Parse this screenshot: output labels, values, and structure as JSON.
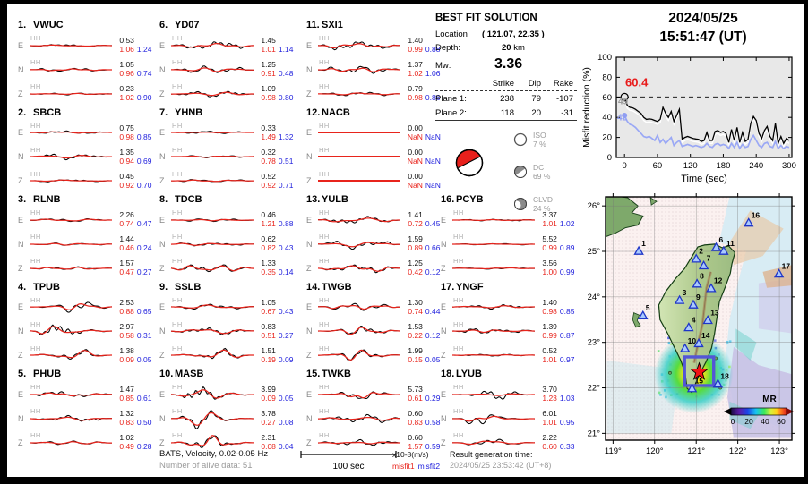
{
  "header": {
    "date": "2024/05/25",
    "time": "15:51:47  (UT)"
  },
  "best_fit": {
    "title": "BEST FIT SOLUTION",
    "location_label": "Location",
    "location_value": "( 121.07,  22.35 )",
    "depth_label": "Depth:",
    "depth_value": "20",
    "depth_unit": "km",
    "mw_label": "Mw:",
    "mw_value": "3.36",
    "table": {
      "headers": [
        "Strike",
        "Dip",
        "Rake"
      ],
      "rows": [
        {
          "label": "Plane 1:",
          "strike": "238",
          "dip": "79",
          "rake": "-107"
        },
        {
          "label": "Plane 2:",
          "strike": "118",
          "dip": "20",
          "rake": "-31"
        }
      ]
    },
    "components": [
      {
        "name": "ISO",
        "pct": "7 %"
      },
      {
        "name": "DC",
        "pct": "69 %"
      },
      {
        "name": "CLVD",
        "pct": "24 %"
      }
    ]
  },
  "stations": [
    {
      "num": "1.",
      "name": "VWUC",
      "traces": [
        {
          "comp": "E",
          "chan": "HH",
          "val": "0.53",
          "m1": "1.06",
          "m2": "1.24",
          "amp": 0.14
        },
        {
          "comp": "N",
          "chan": "HH",
          "val": "1.05",
          "m1": "0.96",
          "m2": "0.74",
          "amp": 0.18
        },
        {
          "comp": "Z",
          "chan": "HH",
          "val": "0.23",
          "m1": "1.02",
          "m2": "0.90",
          "amp": 0.1
        }
      ]
    },
    {
      "num": "2.",
      "name": "SBCB",
      "traces": [
        {
          "comp": "E",
          "chan": "HH",
          "val": "0.75",
          "m1": "0.98",
          "m2": "0.85",
          "amp": 0.14
        },
        {
          "comp": "N",
          "chan": "HH",
          "val": "1.35",
          "m1": "0.94",
          "m2": "0.69",
          "amp": 0.28
        },
        {
          "comp": "Z",
          "chan": "HH",
          "val": "0.45",
          "m1": "0.92",
          "m2": "0.70",
          "amp": 0.12
        }
      ]
    },
    {
      "num": "3.",
      "name": "RLNB",
      "traces": [
        {
          "comp": "E",
          "chan": "HH",
          "val": "2.26",
          "m1": "0.74",
          "m2": "0.47",
          "amp": 0.18
        },
        {
          "comp": "N",
          "chan": "HH",
          "val": "1.44",
          "m1": "0.46",
          "m2": "0.24",
          "amp": 0.12
        },
        {
          "comp": "Z",
          "chan": "HH",
          "val": "1.57",
          "m1": "0.47",
          "m2": "0.27",
          "amp": 0.16
        }
      ]
    },
    {
      "num": "4.",
      "name": "TPUB",
      "traces": [
        {
          "comp": "E",
          "chan": "HH",
          "val": "2.53",
          "m1": "0.88",
          "m2": "0.65",
          "amp": 0.8
        },
        {
          "comp": "N",
          "chan": "HH",
          "val": "2.97",
          "m1": "0.58",
          "m2": "0.31",
          "amp": 0.9
        },
        {
          "comp": "Z",
          "chan": "HH",
          "val": "1.38",
          "m1": "0.09",
          "m2": "0.05",
          "amp": 0.6
        }
      ]
    },
    {
      "num": "5.",
      "name": "PHUB",
      "traces": [
        {
          "comp": "E",
          "chan": "HH",
          "val": "1.47",
          "m1": "0.85",
          "m2": "0.61",
          "amp": 0.3
        },
        {
          "comp": "N",
          "chan": "HH",
          "val": "1.32",
          "m1": "0.83",
          "m2": "0.50",
          "amp": 0.3
        },
        {
          "comp": "Z",
          "chan": "HH",
          "val": "1.02",
          "m1": "0.49",
          "m2": "0.28",
          "amp": 0.18
        }
      ]
    },
    {
      "num": "6.",
      "name": "YD07",
      "traces": [
        {
          "comp": "E",
          "chan": "HH",
          "val": "1.45",
          "m1": "1.01",
          "m2": "1.14",
          "amp": 0.4
        },
        {
          "comp": "N",
          "chan": "HH",
          "val": "1.25",
          "m1": "0.91",
          "m2": "0.48",
          "amp": 0.35
        },
        {
          "comp": "Z",
          "chan": "HH",
          "val": "1.09",
          "m1": "0.98",
          "m2": "0.80",
          "amp": 0.3
        }
      ]
    },
    {
      "num": "7.",
      "name": "YHNB",
      "traces": [
        {
          "comp": "E",
          "chan": "HH",
          "val": "0.33",
          "m1": "1.49",
          "m2": "1.32",
          "amp": 0.12
        },
        {
          "comp": "N",
          "chan": "HH",
          "val": "0.32",
          "m1": "0.78",
          "m2": "0.51",
          "amp": 0.12
        },
        {
          "comp": "Z",
          "chan": "HH",
          "val": "0.52",
          "m1": "0.92",
          "m2": "0.71",
          "amp": 0.14
        }
      ]
    },
    {
      "num": "8.",
      "name": "TDCB",
      "traces": [
        {
          "comp": "E",
          "chan": "HH",
          "val": "0.46",
          "m1": "1.21",
          "m2": "0.88",
          "amp": 0.16
        },
        {
          "comp": "N",
          "chan": "HH",
          "val": "0.62",
          "m1": "0.82",
          "m2": "0.43",
          "amp": 0.2
        },
        {
          "comp": "Z",
          "chan": "HH",
          "val": "1.33",
          "m1": "0.35",
          "m2": "0.14",
          "amp": 0.45
        }
      ]
    },
    {
      "num": "9.",
      "name": "SSLB",
      "traces": [
        {
          "comp": "E",
          "chan": "HH",
          "val": "1.05",
          "m1": "0.67",
          "m2": "0.43",
          "amp": 0.28
        },
        {
          "comp": "N",
          "chan": "HH",
          "val": "0.83",
          "m1": "0.51",
          "m2": "0.27",
          "amp": 0.35
        },
        {
          "comp": "Z",
          "chan": "HH",
          "val": "1.51",
          "m1": "0.19",
          "m2": "0.09",
          "amp": 0.6
        }
      ]
    },
    {
      "num": "10.",
      "name": "MASB",
      "traces": [
        {
          "comp": "E",
          "chan": "HH",
          "val": "3.99",
          "m1": "0.09",
          "m2": "0.05",
          "amp": 1.0
        },
        {
          "comp": "N",
          "chan": "HH",
          "val": "3.78",
          "m1": "0.27",
          "m2": "0.08",
          "amp": 0.95
        },
        {
          "comp": "Z",
          "chan": "HH",
          "val": "2.31",
          "m1": "0.08",
          "m2": "0.04",
          "amp": 0.8
        }
      ]
    },
    {
      "num": "11.",
      "name": "SXI1",
      "traces": [
        {
          "comp": "E",
          "chan": "HH",
          "val": "1.40",
          "m1": "0.99",
          "m2": "0.88",
          "amp": 0.45
        },
        {
          "comp": "N",
          "chan": "HH",
          "val": "1.37",
          "m1": "1.02",
          "m2": "1.06",
          "amp": 0.4
        },
        {
          "comp": "Z",
          "chan": "HH",
          "val": "0.79",
          "m1": "0.98",
          "m2": "0.86",
          "amp": 0.2
        }
      ]
    },
    {
      "num": "12.",
      "name": "NACB",
      "traces": [
        {
          "comp": "E",
          "chan": "HH",
          "val": "0.00",
          "m1": "NaN",
          "m2": "NaN",
          "amp": 0
        },
        {
          "comp": "N",
          "chan": "HH",
          "val": "0.00",
          "m1": "NaN",
          "m2": "NaN",
          "amp": 0
        },
        {
          "comp": "Z",
          "chan": "HH",
          "val": "0.00",
          "m1": "NaN",
          "m2": "NaN",
          "amp": 0
        }
      ]
    },
    {
      "num": "13.",
      "name": "YULB",
      "traces": [
        {
          "comp": "E",
          "chan": "HH",
          "val": "1.41",
          "m1": "0.72",
          "m2": "0.45",
          "amp": 0.4
        },
        {
          "comp": "N",
          "chan": "HH",
          "val": "1.59",
          "m1": "0.89",
          "m2": "0.66",
          "amp": 0.45
        },
        {
          "comp": "Z",
          "chan": "HH",
          "val": "1.25",
          "m1": "0.42",
          "m2": "0.12",
          "amp": 0.4
        }
      ]
    },
    {
      "num": "14.",
      "name": "TWGB",
      "traces": [
        {
          "comp": "E",
          "chan": "HH",
          "val": "1.30",
          "m1": "0.74",
          "m2": "0.44",
          "amp": 0.35
        },
        {
          "comp": "N",
          "chan": "HH",
          "val": "1.53",
          "m1": "0.22",
          "m2": "0.12",
          "amp": 0.6
        },
        {
          "comp": "Z",
          "chan": "HH",
          "val": "1.99",
          "m1": "0.15",
          "m2": "0.05",
          "amp": 0.65
        }
      ]
    },
    {
      "num": "15.",
      "name": "TWKB",
      "traces": [
        {
          "comp": "E",
          "chan": "HH",
          "val": "5.73",
          "m1": "0.61",
          "m2": "0.29",
          "amp": 0.6
        },
        {
          "comp": "N",
          "chan": "HH",
          "val": "0.60",
          "m1": "0.83",
          "m2": "0.58",
          "amp": 0.45
        },
        {
          "comp": "Z",
          "chan": "HH",
          "val": "0.60",
          "m1": "1.57",
          "m2": "0.59",
          "amp": 0.3
        }
      ]
    },
    {
      "num": "16.",
      "name": "PCYB",
      "traces": [
        {
          "comp": "E",
          "chan": "HH",
          "val": "3.37",
          "m1": "1.01",
          "m2": "1.02",
          "amp": 0.1
        },
        {
          "comp": "N",
          "chan": "HH",
          "val": "5.52",
          "m1": "0.99",
          "m2": "0.89",
          "amp": 0.08
        },
        {
          "comp": "Z",
          "chan": "HH",
          "val": "3.56",
          "m1": "1.00",
          "m2": "0.99",
          "amp": 0.1
        }
      ]
    },
    {
      "num": "17.",
      "name": "YNGF",
      "traces": [
        {
          "comp": "E",
          "chan": "HH",
          "val": "1.40",
          "m1": "0.98",
          "m2": "0.85",
          "amp": 0.22
        },
        {
          "comp": "N",
          "chan": "HH",
          "val": "1.39",
          "m1": "0.99",
          "m2": "0.87",
          "amp": 0.25
        },
        {
          "comp": "Z",
          "chan": "HH",
          "val": "0.52",
          "m1": "1.01",
          "m2": "0.97",
          "amp": 0.1
        }
      ]
    },
    {
      "num": "18.",
      "name": "LYUB",
      "traces": [
        {
          "comp": "E",
          "chan": "HH",
          "val": "3.70",
          "m1": "1.23",
          "m2": "1.03",
          "amp": 0.55
        },
        {
          "comp": "N",
          "chan": "HH",
          "val": "6.01",
          "m1": "1.01",
          "m2": "0.95",
          "amp": 0.7
        },
        {
          "comp": "Z",
          "chan": "HH",
          "val": "2.22",
          "m1": "0.60",
          "m2": "0.33",
          "amp": 0.55
        }
      ]
    }
  ],
  "footer": {
    "bats": "BATS, Velocity, 0.02-0.05 Hz",
    "alive": "Number of alive data: 51",
    "scale_label": "100 sec",
    "units_amp": "x10-8(m/s)",
    "units_m1": "misfit1",
    "units_m2": "misfit2",
    "result_label": "Result generation time:",
    "result_time": "2024/05/25 23:53:42 (UT+8)"
  },
  "colors": {
    "misfit1": "#e8241c",
    "misfit2": "#2222dd",
    "best_label": "#e81c1c",
    "blue_line": "#9aa8f5",
    "gray_label": "#9a9a9a",
    "map_triangle": "#1f36c8",
    "box": "#5356d6",
    "star": "#f01414"
  },
  "chart_data": [
    {
      "type": "line",
      "title": "Misfit reduction vs time",
      "xlabel": "Time (sec)",
      "ylabel": "Misfit reduction (%)",
      "xlim": [
        -15,
        305
      ],
      "ylim": [
        0,
        100
      ],
      "xticks": [
        0,
        60,
        120,
        180,
        240,
        300
      ],
      "yticks": [
        0,
        20,
        40,
        60,
        80,
        100
      ],
      "grid": false,
      "legend_position": "none",
      "plot_bg": "#e8e8e8",
      "dashed_hline": 60.4,
      "x_step_sec": 5,
      "annotations": [
        {
          "text": "60.4",
          "color": "#e81c1c",
          "bold": true
        },
        {
          "text": "49",
          "color": "#9a9a9a",
          "bold": true
        },
        {
          "text": "42",
          "color": "#8f9df2",
          "bold": true
        }
      ],
      "markers": [
        {
          "x": 0,
          "y": 60.4,
          "style": "open-circle",
          "color": "#000000"
        },
        {
          "x": 0,
          "y": 42,
          "style": "filled-circle",
          "color": "#8f9df2"
        }
      ],
      "series": [
        {
          "name": "misfit1 (black)",
          "color": "#000000",
          "values": [
            60.4,
            52,
            50,
            49.5,
            48,
            46,
            44,
            40,
            38,
            38.5,
            38,
            37,
            36,
            38,
            50,
            44,
            40,
            46,
            36,
            42,
            48,
            18,
            20,
            21,
            20,
            19,
            18.5,
            18,
            16,
            17,
            25,
            17,
            17,
            26,
            27,
            25,
            26,
            24,
            15,
            28,
            17,
            30,
            15,
            25,
            16,
            18,
            34,
            41,
            37,
            24,
            19,
            27,
            31,
            21,
            17,
            34,
            14,
            21,
            14,
            19,
            17
          ]
        },
        {
          "name": "misfit2 (blue)",
          "color": "#9aa8f5",
          "values": [
            42,
            36,
            33,
            32,
            30,
            27,
            24,
            21,
            20,
            21,
            19,
            17,
            22,
            15,
            18,
            14,
            17,
            20,
            12,
            15,
            17,
            11,
            12,
            13,
            12,
            11,
            12,
            11,
            10,
            11,
            14,
            11,
            10,
            13,
            14,
            12,
            13,
            12,
            9,
            14,
            10,
            15,
            9,
            13,
            10,
            11,
            18,
            22,
            17,
            12,
            10,
            14,
            15,
            11,
            10,
            16,
            9,
            12,
            9,
            11,
            10
          ]
        },
        {
          "name": "overlay (white)",
          "color": "#ffffff",
          "derived_from": "misfit1 (black)",
          "offset": -3,
          "start_value": 49
        }
      ]
    },
    {
      "type": "map",
      "lon_range": [
        118.82,
        123.3
      ],
      "lat_range": [
        20.85,
        26.2
      ],
      "lon_tick_labels": [
        "119°",
        "120°",
        "121°",
        "122°",
        "123°"
      ],
      "lat_tick_labels": [
        "21°",
        "22°",
        "23°",
        "24°",
        "25°",
        "26°"
      ],
      "epicenter": {
        "lon": 121.07,
        "lat": 22.35
      },
      "highlight_box": {
        "lon_min": 120.72,
        "lon_max": 121.42,
        "lat_min": 22.05,
        "lat_max": 22.68
      },
      "stations": [
        {
          "n": "1",
          "lon": 119.62,
          "lat": 25.0
        },
        {
          "n": "2",
          "lon": 121.0,
          "lat": 24.83
        },
        {
          "n": "3",
          "lon": 120.6,
          "lat": 23.92
        },
        {
          "n": "4",
          "lon": 120.82,
          "lat": 23.32
        },
        {
          "n": "5",
          "lon": 119.72,
          "lat": 23.58
        },
        {
          "n": "6",
          "lon": 121.48,
          "lat": 25.08
        },
        {
          "n": "7",
          "lon": 121.18,
          "lat": 24.68
        },
        {
          "n": "8",
          "lon": 121.02,
          "lat": 24.28
        },
        {
          "n": "9",
          "lon": 120.93,
          "lat": 23.82
        },
        {
          "n": "10",
          "lon": 120.73,
          "lat": 22.86
        },
        {
          "n": "11",
          "lon": 121.66,
          "lat": 25.0
        },
        {
          "n": "12",
          "lon": 121.36,
          "lat": 24.18
        },
        {
          "n": "13",
          "lon": 121.28,
          "lat": 23.48
        },
        {
          "n": "14",
          "lon": 121.06,
          "lat": 22.97
        },
        {
          "n": "15",
          "lon": 120.9,
          "lat": 21.98
        },
        {
          "n": "16",
          "lon": 122.26,
          "lat": 25.62
        },
        {
          "n": "17",
          "lon": 122.99,
          "lat": 24.5
        },
        {
          "n": "18",
          "lon": 121.52,
          "lat": 22.08
        }
      ],
      "colorbar": {
        "title": "MR",
        "tick_labels": [
          "0",
          "20",
          "40",
          "60"
        ]
      }
    }
  ]
}
